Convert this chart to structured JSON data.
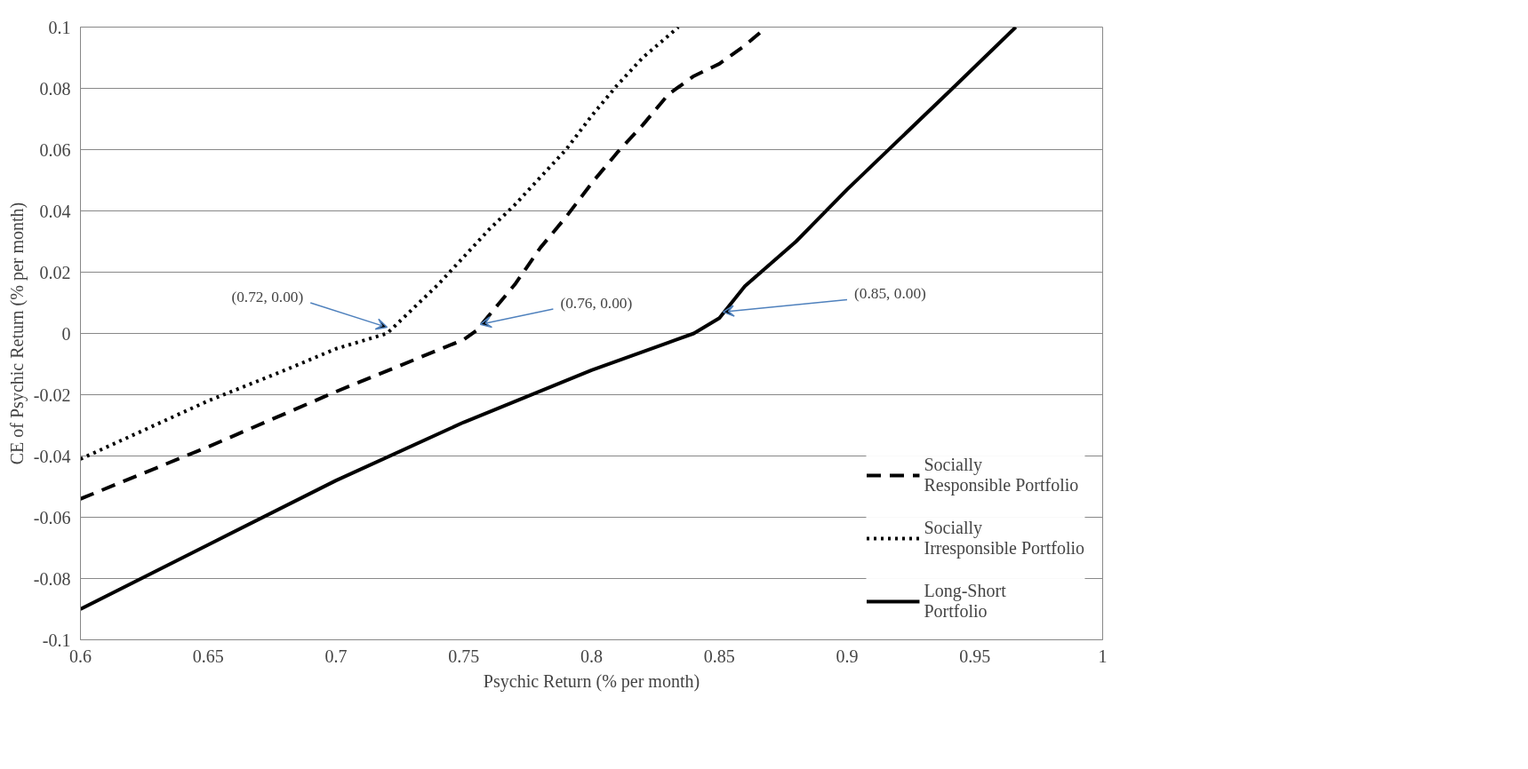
{
  "chart_data": {
    "type": "line",
    "xlabel": "Psychic Return (% per month)",
    "ylabel": "CE of Psychic Return (% per month)",
    "xlim": [
      0.6,
      1
    ],
    "xticks": [
      0.6,
      0.65,
      0.7,
      0.75,
      0.8,
      0.85,
      0.9,
      0.95,
      1
    ],
    "ylim": [
      -0.1,
      0.1
    ],
    "yticks": [
      -0.1,
      -0.08,
      -0.06,
      -0.04,
      -0.02,
      0,
      0.02,
      0.04,
      0.06,
      0.08,
      0.1
    ],
    "grid": "y",
    "legend": "bottom right",
    "marker": "none",
    "series": [
      {
        "name": "Socially Responsible Portfolio",
        "color": "#000000",
        "line_style": "dashed",
        "x": [
          0.6,
          0.65,
          0.7,
          0.75,
          0.755,
          0.76,
          0.77,
          0.78,
          0.79,
          0.8,
          0.81,
          0.82,
          0.83,
          0.84,
          0.85,
          0.86,
          0.8685
        ],
        "values": [
          -0.054,
          -0.037,
          -0.019,
          -0.002,
          0.001,
          0.006,
          0.016,
          0.028,
          0.038,
          0.049,
          0.059,
          0.068,
          0.078,
          0.084,
          0.088,
          0.094,
          0.1
        ]
      },
      {
        "name": "Socially Irresponsible Portfolio",
        "color": "#000000",
        "line_style": "dotted",
        "x": [
          0.6,
          0.65,
          0.68,
          0.7,
          0.72,
          0.73,
          0.74,
          0.75,
          0.76,
          0.77,
          0.78,
          0.79,
          0.8,
          0.81,
          0.82,
          0.834
        ],
        "values": [
          -0.041,
          -0.022,
          -0.012,
          -0.005,
          0.0,
          0.008,
          0.016,
          0.025,
          0.034,
          0.042,
          0.051,
          0.06,
          0.071,
          0.081,
          0.09,
          0.1
        ]
      },
      {
        "name": "Long-Short Portfolio",
        "color": "#000000",
        "line_style": "solid",
        "x": [
          0.6,
          0.65,
          0.7,
          0.75,
          0.8,
          0.83,
          0.84,
          0.85,
          0.86,
          0.88,
          0.9,
          0.92,
          0.94,
          0.966
        ],
        "values": [
          -0.09,
          -0.069,
          -0.048,
          -0.029,
          -0.012,
          -0.003,
          0.0,
          0.005,
          0.0154,
          0.03,
          0.047,
          0.063,
          0.079,
          0.1
        ]
      }
    ],
    "annotations": [
      {
        "text": "(0.72, 0.00)",
        "x": 0.72,
        "y": 0.0
      },
      {
        "text": "(0.76, 0.00)",
        "x": 0.755,
        "y": 0.001
      },
      {
        "text": "(0.85, 0.00)",
        "x": 0.85,
        "y": 0.005
      }
    ]
  }
}
